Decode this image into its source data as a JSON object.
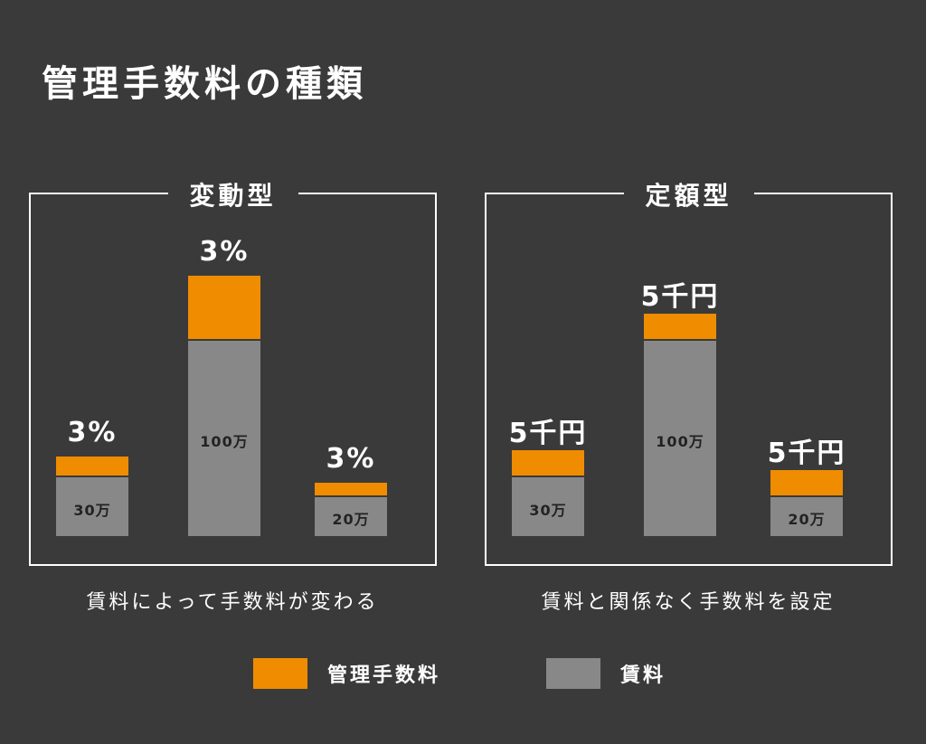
{
  "title": "管理手数料の種類",
  "colors": {
    "fee": "#f08c00",
    "rent": "#888888",
    "background": "#3a3a3a"
  },
  "chart_data": [
    {
      "type": "bar",
      "stacked": true,
      "title": "変動型",
      "caption": "賃料によって手数料が変わる",
      "categories": [
        "30万",
        "100万",
        "20万"
      ],
      "series": [
        {
          "name": "賃料",
          "values": [
            30,
            100,
            20
          ]
        },
        {
          "name": "管理手数料",
          "labels": [
            "3%",
            "3%",
            "3%"
          ]
        }
      ]
    },
    {
      "type": "bar",
      "stacked": true,
      "title": "定額型",
      "caption": "賃料と関係なく手数料を設定",
      "categories": [
        "30万",
        "100万",
        "20万"
      ],
      "series": [
        {
          "name": "賃料",
          "values": [
            30,
            100,
            20
          ]
        },
        {
          "name": "管理手数料",
          "labels": [
            "5千円",
            "5千円",
            "5千円"
          ]
        }
      ]
    }
  ],
  "legend": [
    {
      "label": "管理手数料",
      "color": "#f08c00"
    },
    {
      "label": "賃料",
      "color": "#888888"
    }
  ]
}
